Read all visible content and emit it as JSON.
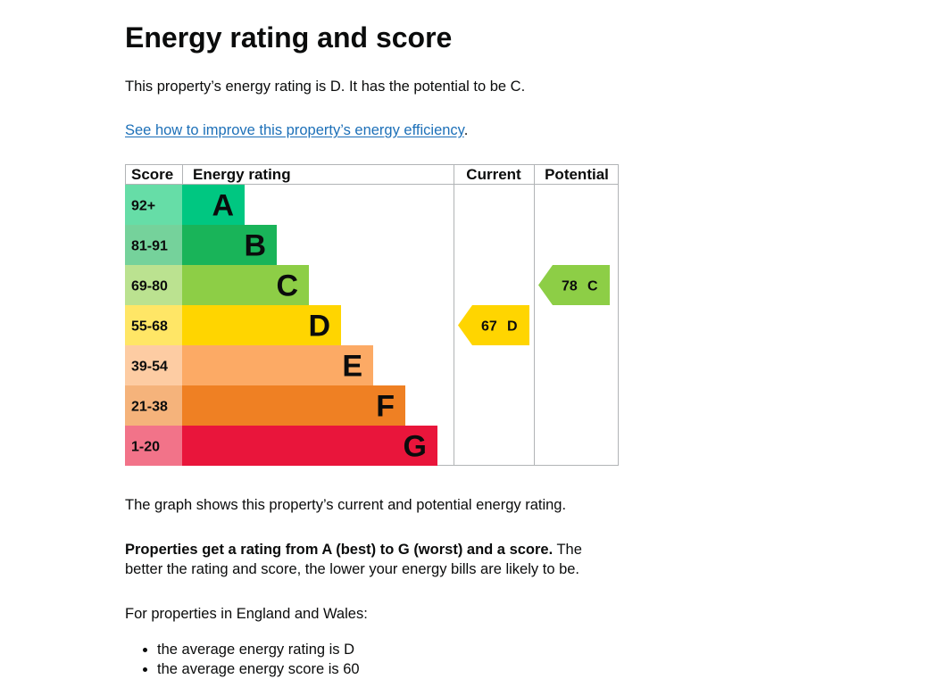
{
  "page": {
    "title": "Energy rating and score",
    "summary": "This property’s energy rating is D. It has the potential to be C.",
    "improve_link_text": "See how to improve this property’s energy efficiency",
    "improve_link_suffix": ".",
    "graph_caption": "The graph shows this property’s current and potential energy rating.",
    "ratings_bold": "Properties get a rating from A (best) to G (worst) and a score.",
    "ratings_rest": " The better the rating and score, the lower your energy bills are likely to be.",
    "england_wales_intro": "For properties in England and Wales:",
    "averages": [
      "the average energy rating is D",
      "the average energy score is 60"
    ]
  },
  "chart_data": {
    "type": "bar",
    "headers": {
      "score": "Score",
      "rating": "Energy rating",
      "current": "Current",
      "potential": "Potential"
    },
    "bands": [
      {
        "letter": "A",
        "score_range": "92+",
        "color": "#00c781",
        "score_bg": "#66dda7"
      },
      {
        "letter": "B",
        "score_range": "81-91",
        "color": "#19b459",
        "score_bg": "#75d29b"
      },
      {
        "letter": "C",
        "score_range": "69-80",
        "color": "#8dce46",
        "score_bg": "#bbe290"
      },
      {
        "letter": "D",
        "score_range": "55-68",
        "color": "#ffd500",
        "score_bg": "#ffe666"
      },
      {
        "letter": "E",
        "score_range": "39-54",
        "color": "#fcaa65",
        "score_bg": "#fdcca3"
      },
      {
        "letter": "F",
        "score_range": "21-38",
        "color": "#ef8023",
        "score_bg": "#f5b37b"
      },
      {
        "letter": "G",
        "score_range": "1-20",
        "color": "#e9153b",
        "score_bg": "#f27389"
      }
    ],
    "current": {
      "score": 67,
      "letter": "D",
      "color": "#ffd500"
    },
    "potential": {
      "score": 78,
      "letter": "C",
      "color": "#8dce46"
    }
  }
}
